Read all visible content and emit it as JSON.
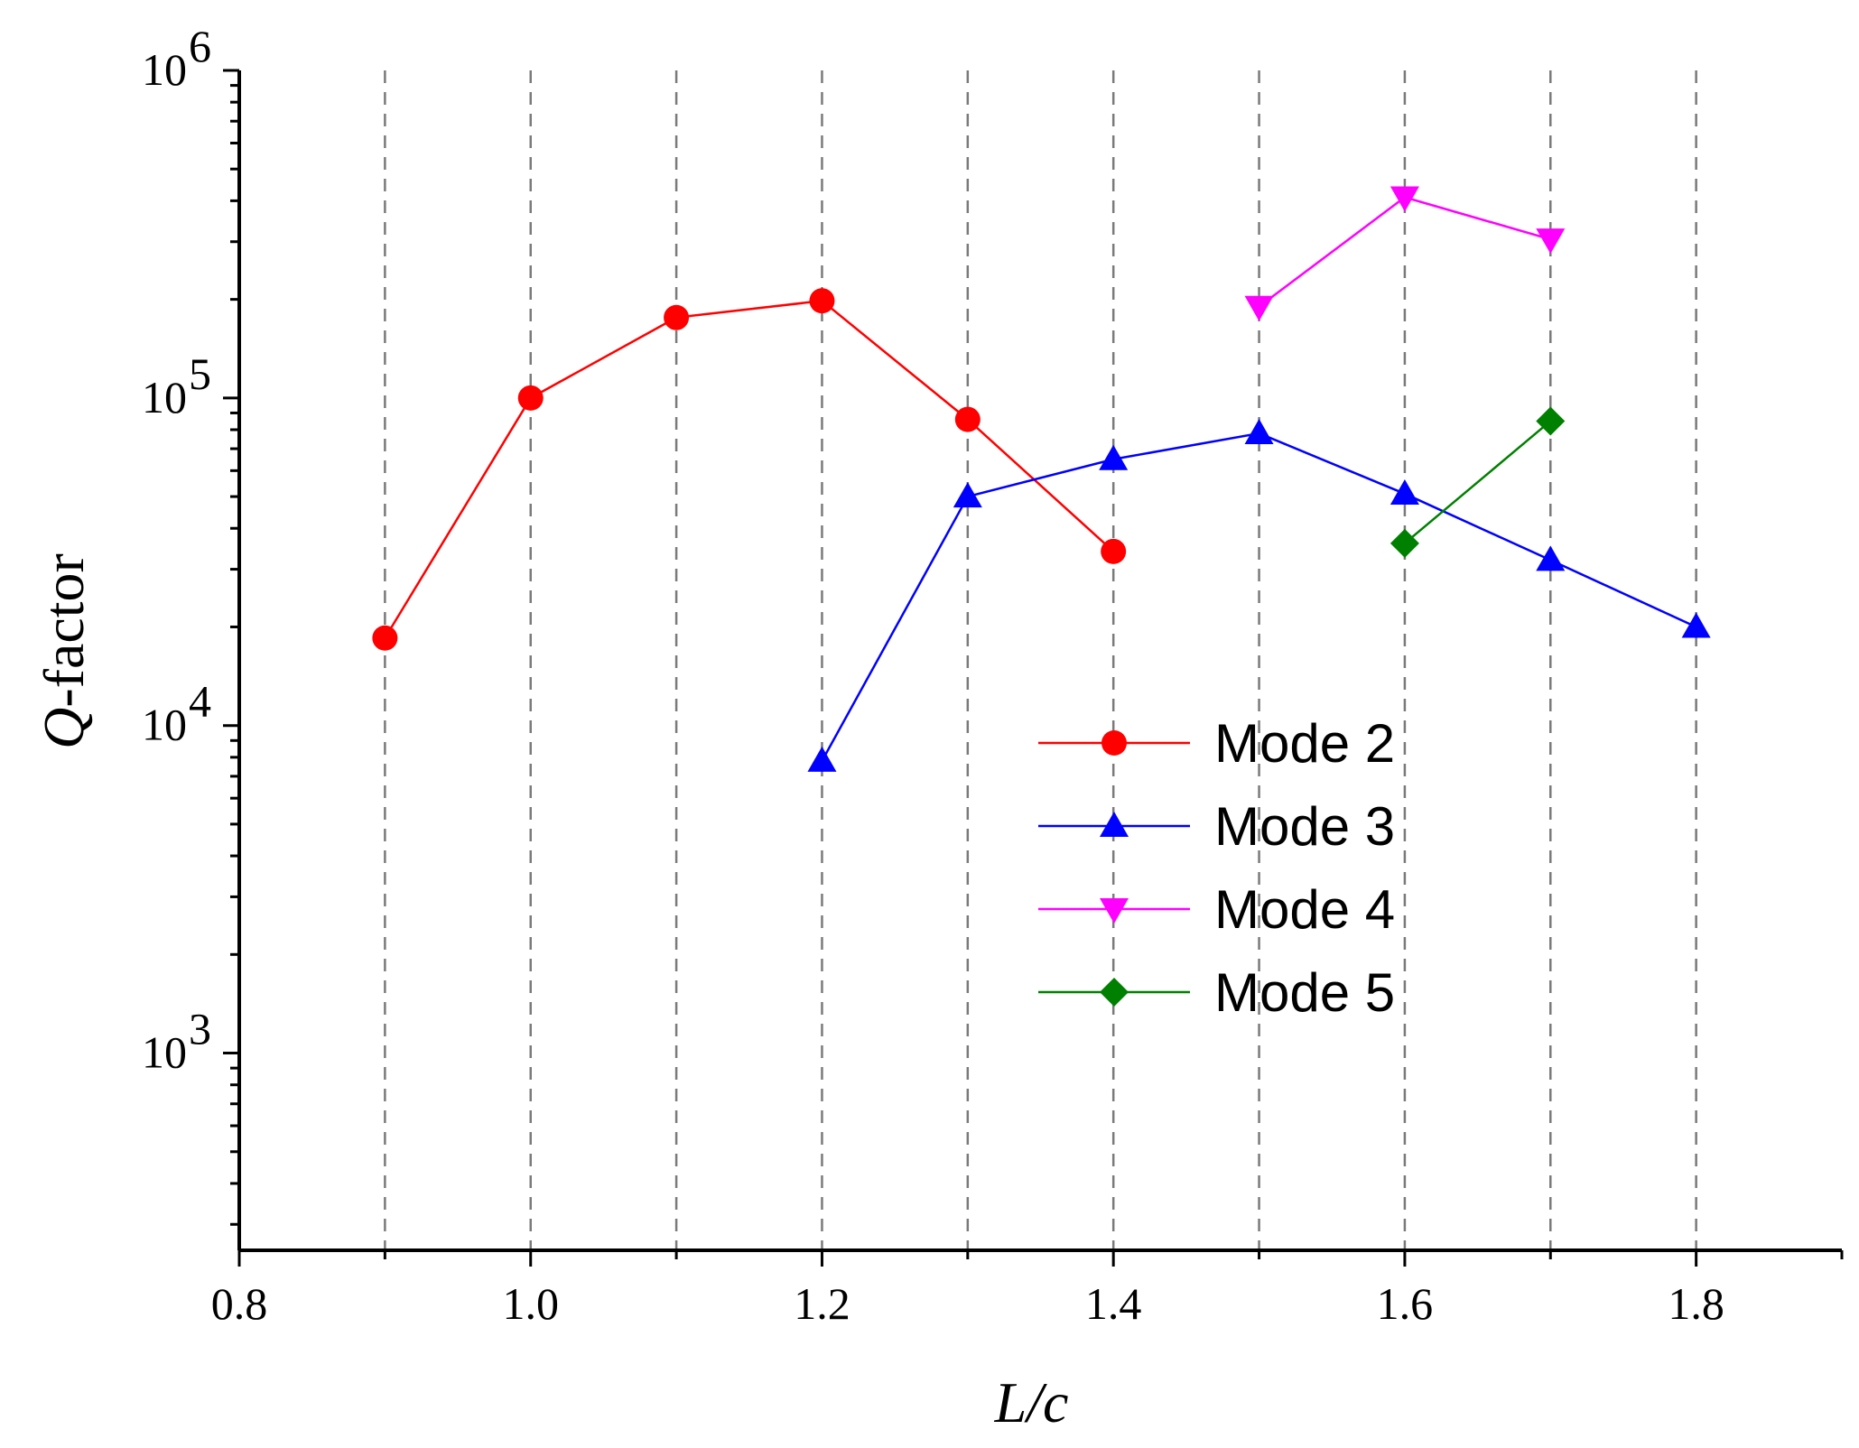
{
  "chart_data": {
    "type": "line",
    "y_scale": "log",
    "xlabel": "L/c",
    "ylabel": "Q-factor",
    "xlim": [
      0.8,
      1.9
    ],
    "ylim": [
      250,
      1000000
    ],
    "x_ticks": [
      0.8,
      1.0,
      1.2,
      1.4,
      1.6,
      1.8
    ],
    "x_tick_labels": [
      "0.8",
      "1.0",
      "1.2",
      "1.4",
      "1.6",
      "1.8"
    ],
    "y_ticks": [
      1000,
      10000,
      100000,
      1000000
    ],
    "y_tick_labels": [
      {
        "base": "10",
        "exp": "3"
      },
      {
        "base": "10",
        "exp": "4"
      },
      {
        "base": "10",
        "exp": "5"
      },
      {
        "base": "10",
        "exp": "6"
      }
    ],
    "vertical_gridlines": [
      0.9,
      1.0,
      1.1,
      1.2,
      1.3,
      1.4,
      1.5,
      1.6,
      1.7,
      1.8
    ],
    "legend_position": "center-right",
    "series": [
      {
        "name": "Mode 2",
        "color": "#ff0000",
        "marker": "circle",
        "x": [
          0.9,
          1.0,
          1.1,
          1.2,
          1.3,
          1.4
        ],
        "y": [
          18500,
          100000,
          176000,
          198000,
          86000,
          34000
        ]
      },
      {
        "name": "Mode 3",
        "color": "#0000ff",
        "marker": "triangle-up",
        "x": [
          1.2,
          1.3,
          1.4,
          1.5,
          1.6,
          1.7,
          1.8
        ],
        "y": [
          7800,
          50000,
          65000,
          78000,
          51000,
          32000,
          20000
        ]
      },
      {
        "name": "Mode 4",
        "color": "#ff00ff",
        "marker": "triangle-down",
        "x": [
          1.5,
          1.6,
          1.7
        ],
        "y": [
          190000,
          410000,
          305000
        ]
      },
      {
        "name": "Mode 5",
        "color": "#008000",
        "marker": "diamond",
        "x": [
          1.6,
          1.7
        ],
        "y": [
          36000,
          85000
        ]
      }
    ]
  }
}
